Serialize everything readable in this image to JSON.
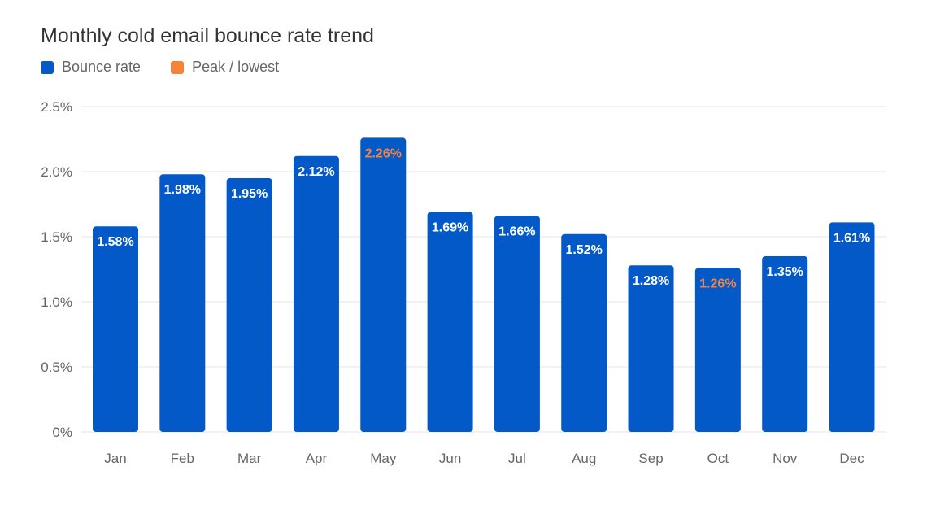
{
  "chart_data": {
    "type": "bar",
    "title": "Monthly cold email bounce rate trend",
    "xlabel": "",
    "ylabel": "",
    "categories": [
      "Jan",
      "Feb",
      "Mar",
      "Apr",
      "May",
      "Jun",
      "Jul",
      "Aug",
      "Sep",
      "Oct",
      "Nov",
      "Dec"
    ],
    "series": [
      {
        "name": "Bounce rate",
        "values": [
          1.58,
          1.98,
          1.95,
          2.12,
          2.26,
          1.69,
          1.66,
          1.52,
          1.28,
          1.26,
          1.35,
          1.61
        ],
        "labels": [
          "1.58%",
          "1.98%",
          "1.95%",
          "2.12%",
          "2.26%",
          "1.69%",
          "1.66%",
          "1.52%",
          "1.28%",
          "1.26%",
          "1.35%",
          "1.61%"
        ]
      }
    ],
    "highlight_label": "Peak / lowest",
    "highlighted_categories": [
      "May",
      "Oct"
    ],
    "ylim": [
      0,
      2.5
    ],
    "y_ticks": [
      0,
      0.5,
      1.0,
      1.5,
      2.0,
      2.5
    ],
    "y_tick_labels": [
      "0%",
      "0.5%",
      "1.0%",
      "1.5%",
      "2.0%",
      "2.5%"
    ],
    "grid": true,
    "legend_position": "top-left",
    "colors": {
      "bar": "#0459C9",
      "highlight": "#F5833A",
      "value_label": "#ffffff",
      "grid": "#E6E6E6",
      "axis_text": "#666666"
    }
  }
}
